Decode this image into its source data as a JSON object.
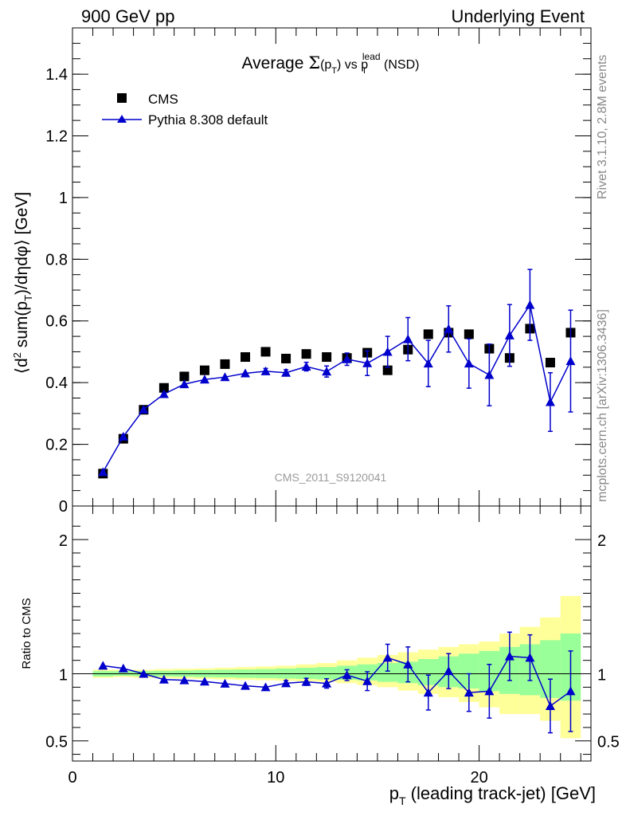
{
  "header": {
    "left": "900 GeV pp",
    "right": "Underlying Event"
  },
  "side": {
    "rivet": "Rivet 3.1.10,  2.8M events",
    "mcplots": "mcplots.cern.ch [arXiv:1306.3436]"
  },
  "chart_data": [
    {
      "type": "scatter",
      "title": "Average Σ(p_T) vs p_T^lead (NSD)",
      "title_parts": {
        "a": "Average ",
        "sigma": "Σ",
        "p": "(p",
        "sub": "T",
        "vs": ") vs p",
        "sup": "lead",
        "tail": " (NSD)"
      },
      "ylabel": "⟨d² sum(p_T)/dηdφ⟩ [GeV]",
      "ylabel_parts": {
        "a": "⟨d",
        "sup": "2",
        "b": " sum(p",
        "sub": "T",
        "c": ")/dηdφ⟩ [GeV]"
      },
      "xlim": [
        0,
        25.5
      ],
      "ylim": [
        0,
        1.55
      ],
      "yticks": [
        0,
        0.2,
        0.4,
        0.6,
        0.8,
        1,
        1.2,
        1.4
      ],
      "ytick_labels": [
        "0",
        "0.2",
        "0.4",
        "0.6",
        "0.8",
        "1",
        "1.2",
        "1.4"
      ],
      "watermark": "CMS_2011_S9120041",
      "legend_placement": "top-left",
      "series": [
        {
          "name": "CMS",
          "color": "#000000",
          "marker": "square",
          "x": [
            1.5,
            2.5,
            3.5,
            4.5,
            5.5,
            6.5,
            7.5,
            8.5,
            9.5,
            10.5,
            11.5,
            12.5,
            13.5,
            14.5,
            15.5,
            16.5,
            17.5,
            18.5,
            19.5,
            20.5,
            21.5,
            22.5,
            23.5,
            24.5
          ],
          "y": [
            0.105,
            0.218,
            0.312,
            0.383,
            0.42,
            0.44,
            0.46,
            0.483,
            0.5,
            0.478,
            0.493,
            0.483,
            0.48,
            0.497,
            0.44,
            0.507,
            0.557,
            0.562,
            0.557,
            0.51,
            0.48,
            0.575,
            0.465,
            0.562
          ]
        },
        {
          "name": "Pythia 8.308 default",
          "color": "#0000cc",
          "marker": "triangle",
          "x": [
            1.5,
            2.5,
            3.5,
            4.5,
            5.5,
            6.5,
            7.5,
            8.5,
            9.5,
            10.5,
            11.5,
            12.5,
            13.5,
            14.5,
            15.5,
            16.5,
            17.5,
            18.5,
            19.5,
            20.5,
            21.5,
            22.5,
            23.5,
            24.5
          ],
          "y": [
            0.11,
            0.225,
            0.313,
            0.363,
            0.395,
            0.41,
            0.418,
            0.43,
            0.437,
            0.432,
            0.452,
            0.436,
            0.476,
            0.463,
            0.5,
            0.541,
            0.462,
            0.574,
            0.462,
            0.425,
            0.553,
            0.652,
            0.337,
            0.47
          ],
          "yerr": [
            0.003,
            0.003,
            0.004,
            0.005,
            0.006,
            0.006,
            0.007,
            0.008,
            0.009,
            0.01,
            0.014,
            0.018,
            0.02,
            0.04,
            0.05,
            0.07,
            0.075,
            0.075,
            0.08,
            0.1,
            0.1,
            0.115,
            0.095,
            0.165
          ]
        }
      ]
    },
    {
      "type": "scatter",
      "title": "",
      "ylabel": "Ratio to CMS",
      "xlabel": "p_T (leading track-jet) [GeV]",
      "xlabel_parts": {
        "a": "p",
        "sub": "T",
        "b": " (leading track-jet) [GeV]"
      },
      "xlim": [
        0,
        25.5
      ],
      "ylim": [
        0.35,
        2.25
      ],
      "xticks": [
        0,
        10,
        20
      ],
      "xtick_labels": [
        "0",
        "10",
        "20"
      ],
      "yticks": [
        0.5,
        1,
        2
      ],
      "ytick_labels": [
        "0.5",
        "1",
        "2"
      ],
      "bands": {
        "x_edges": [
          1,
          2,
          3,
          4,
          5,
          6,
          7,
          8,
          9,
          10,
          11,
          12,
          13,
          14,
          15,
          16,
          17,
          18,
          19,
          20,
          21,
          22,
          23,
          24,
          25
        ],
        "yellow_lo": [
          0.97,
          0.975,
          0.97,
          0.968,
          0.965,
          0.962,
          0.958,
          0.955,
          0.952,
          0.948,
          0.944,
          0.94,
          0.93,
          0.915,
          0.9,
          0.875,
          0.85,
          0.825,
          0.79,
          0.75,
          0.7,
          0.7,
          0.65,
          0.52
        ],
        "yellow_hi": [
          1.03,
          1.03,
          1.03,
          1.035,
          1.038,
          1.04,
          1.045,
          1.05,
          1.055,
          1.06,
          1.07,
          1.08,
          1.1,
          1.12,
          1.14,
          1.16,
          1.18,
          1.2,
          1.22,
          1.24,
          1.3,
          1.35,
          1.42,
          1.58
        ],
        "green_lo": [
          0.98,
          0.985,
          0.982,
          0.98,
          0.978,
          0.975,
          0.973,
          0.97,
          0.968,
          0.965,
          0.962,
          0.958,
          0.955,
          0.95,
          0.94,
          0.93,
          0.915,
          0.9,
          0.89,
          0.87,
          0.85,
          0.84,
          0.82,
          0.8
        ],
        "green_hi": [
          1.02,
          1.02,
          1.02,
          1.022,
          1.025,
          1.027,
          1.03,
          1.032,
          1.035,
          1.04,
          1.045,
          1.05,
          1.06,
          1.07,
          1.08,
          1.09,
          1.11,
          1.13,
          1.15,
          1.17,
          1.2,
          1.22,
          1.25,
          1.3
        ]
      },
      "series": [
        {
          "name": "Pythia 8.308 default",
          "color": "#0000cc",
          "x": [
            1.5,
            2.5,
            3.5,
            4.5,
            5.5,
            6.5,
            7.5,
            8.5,
            9.5,
            10.5,
            11.5,
            12.5,
            13.5,
            14.5,
            15.5,
            16.5,
            17.5,
            18.5,
            19.5,
            20.5,
            21.5,
            22.5,
            23.5,
            24.5
          ],
          "y": [
            1.06,
            1.04,
            1.0,
            0.957,
            0.952,
            0.942,
            0.927,
            0.91,
            0.9,
            0.93,
            0.94,
            0.928,
            0.99,
            0.945,
            1.12,
            1.07,
            0.86,
            1.02,
            0.86,
            0.87,
            1.13,
            1.12,
            0.76,
            0.87
          ],
          "yerr": [
            0.006,
            0.006,
            0.007,
            0.008,
            0.008,
            0.009,
            0.01,
            0.012,
            0.013,
            0.02,
            0.026,
            0.035,
            0.04,
            0.07,
            0.1,
            0.13,
            0.13,
            0.13,
            0.14,
            0.2,
            0.18,
            0.17,
            0.2,
            0.3
          ]
        }
      ]
    }
  ]
}
